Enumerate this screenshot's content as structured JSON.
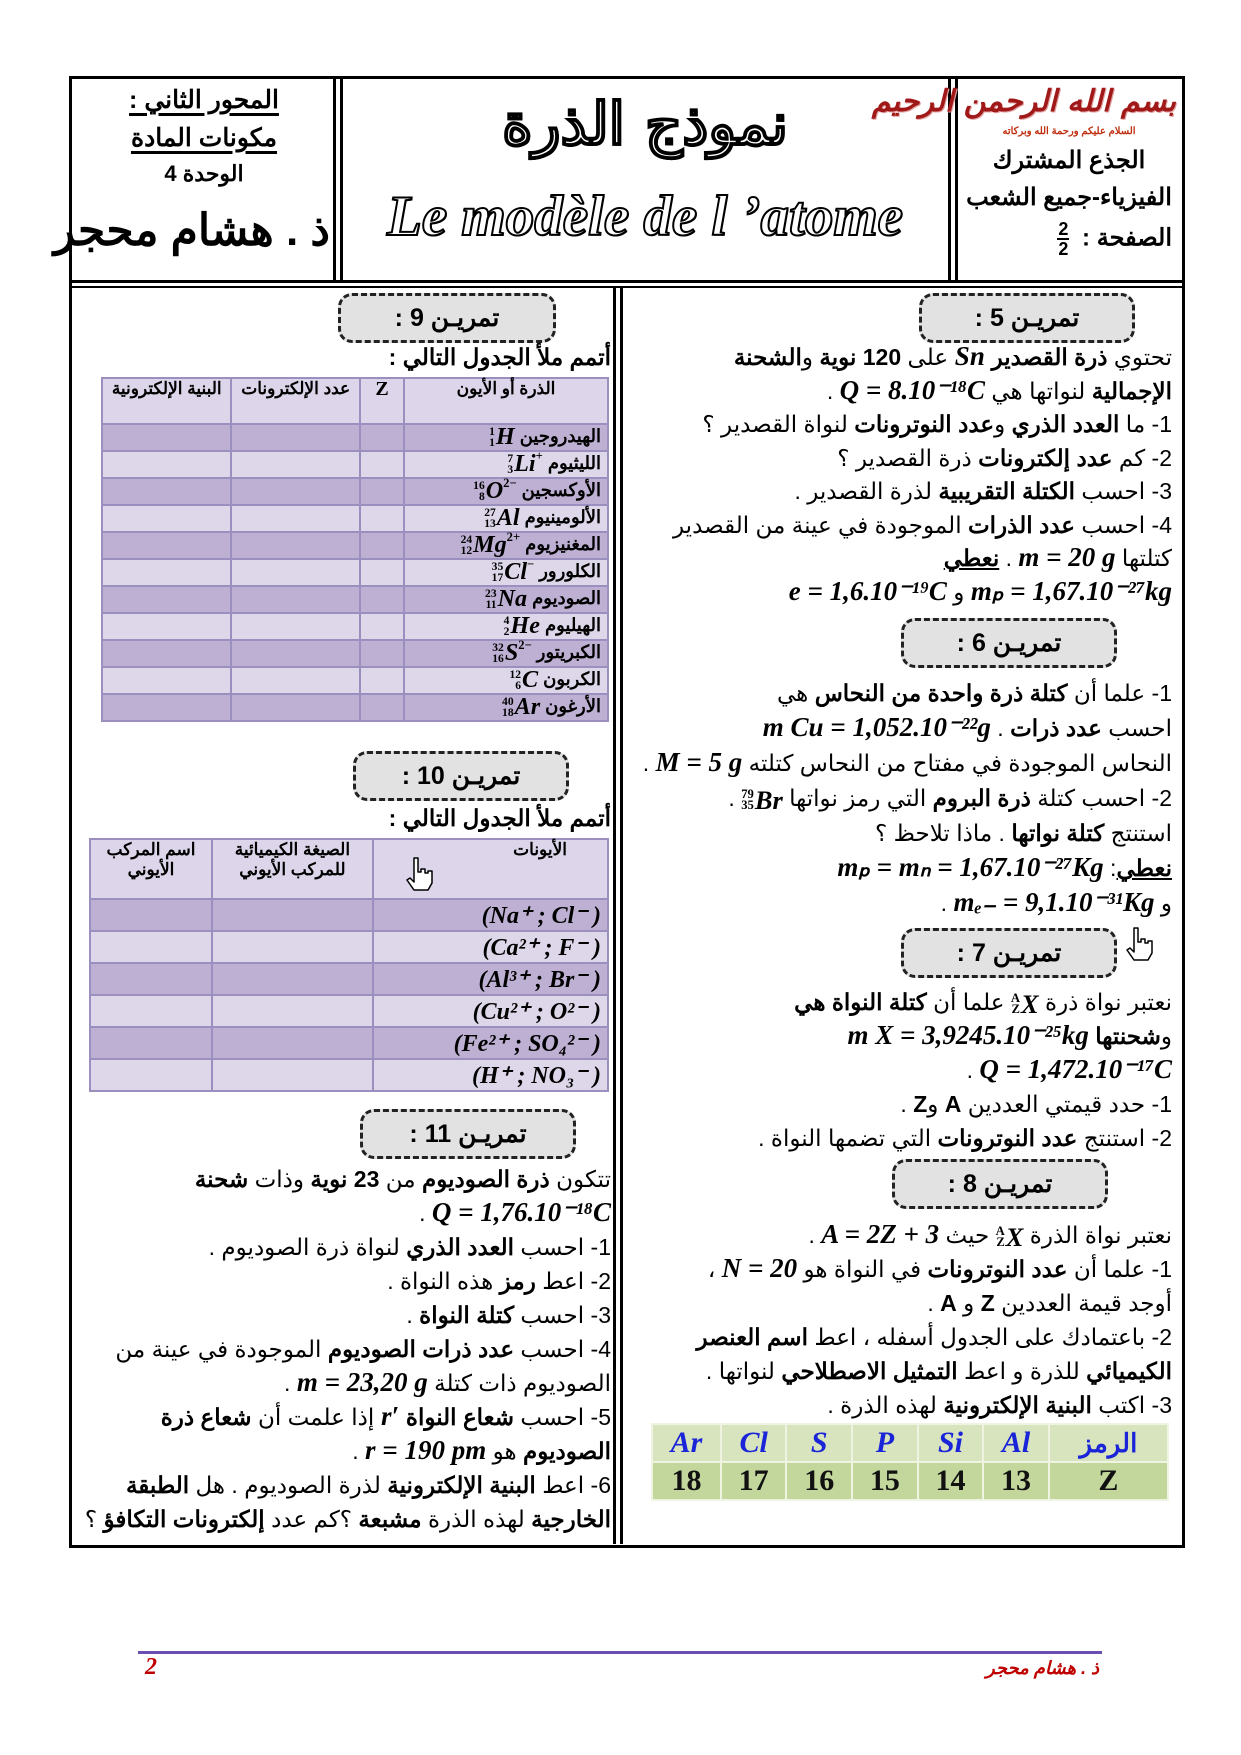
{
  "header": {
    "basmala": "بسم الله الرحمن الرحيم",
    "greeting": "السلام عليكم ورحمة الله وبركاته",
    "level": "الجذع المشترك",
    "branch": "الفيزياء-جميع الشعب",
    "page_label": "الصفحة :",
    "page_current": "2",
    "page_total": "2",
    "title_ar": "نموذج الذرة",
    "title_fr": "Le modèle de l ’atome",
    "axis": "المحور الثاني :",
    "part": "مكونات المادة",
    "unit": "الوحدة 4",
    "teacher": "ذ . هشام محجر"
  },
  "ex5": {
    "title": "تمريـن 5 :",
    "lines": [
      [
        [
          "n",
          "تحتوي "
        ],
        [
          "b",
          "ذرة القصدير"
        ],
        [
          "m",
          " Sn "
        ],
        [
          "n",
          "على "
        ],
        [
          "b",
          "120 نوية"
        ],
        [
          "n",
          " و"
        ],
        [
          "b",
          "الشحنة"
        ]
      ],
      [
        [
          "b",
          "الإجمالية"
        ],
        [
          "n",
          " لنواتها هي "
        ],
        [
          "m",
          "Q = 8.10⁻¹⁸C"
        ],
        [
          "n",
          "  ."
        ]
      ],
      [
        [
          "n",
          "1- ما "
        ],
        [
          "b",
          "العدد الذري"
        ],
        [
          "n",
          " و"
        ],
        [
          "b",
          "عدد النوترونات"
        ],
        [
          "n",
          " لنواة القصدير ؟"
        ]
      ],
      [
        [
          "n",
          "2- كم "
        ],
        [
          "b",
          "عدد إلكترونات"
        ],
        [
          "n",
          " ذرة القصدير ؟"
        ]
      ],
      [
        [
          "n",
          "3- احسب "
        ],
        [
          "b",
          "الكتلة التقريبية"
        ],
        [
          "n",
          " لذرة القصدير ."
        ]
      ],
      [
        [
          "n",
          "4- احسب "
        ],
        [
          "b",
          "عدد الذرات"
        ],
        [
          "n",
          " الموجودة في عينة من القصدير"
        ]
      ],
      [
        [
          "n",
          "كتلتها  "
        ],
        [
          "m",
          "m = 20 g"
        ],
        [
          "n",
          " .    "
        ],
        [
          "u",
          "نعطي"
        ]
      ],
      [
        [
          "m",
          "mₚ = 1,67.10⁻²⁷kg"
        ],
        [
          "n",
          " و "
        ],
        [
          "m",
          "e = 1,6.10⁻¹⁹C"
        ]
      ]
    ]
  },
  "ex6": {
    "title": "تمريـن 6 :",
    "lines": [
      [
        [
          "n",
          "1- علما أن "
        ],
        [
          "b",
          "كتلة ذرة واحدة من النحاس"
        ],
        [
          "n",
          "   هي"
        ]
      ],
      [
        [
          "n",
          "احسب "
        ],
        [
          "b",
          "عدد ذرات"
        ],
        [
          "n",
          " . "
        ],
        [
          "m",
          "m Cu = 1,052.10⁻²²g"
        ]
      ],
      [
        [
          "n",
          "النحاس الموجودة في مفتاح من النحاس كتلته "
        ],
        [
          "m",
          "M = 5 g"
        ],
        [
          "n",
          " ."
        ]
      ],
      [
        [
          "n",
          "2- احسب كتلة "
        ],
        [
          "b",
          "ذرة البروم"
        ],
        [
          "n",
          " التي رمز نواتها "
        ],
        [
          "k",
          "79",
          "35",
          "Br",
          ""
        ],
        [
          "n",
          " ."
        ]
      ],
      [
        [
          "n",
          "استنتج "
        ],
        [
          "b",
          "كتلة نواتها"
        ],
        [
          "n",
          " . ماذا تلاحظ ؟"
        ]
      ],
      [
        [
          "u",
          "نعطي"
        ],
        [
          "n",
          ": "
        ],
        [
          "m",
          "mₚ = mₙ = 1,67.10⁻²⁷Kg"
        ]
      ],
      [
        [
          "n",
          "و    "
        ],
        [
          "m",
          "mₑ₋ = 9,1.10⁻³¹Kg"
        ],
        [
          "n",
          " ."
        ]
      ]
    ]
  },
  "ex7": {
    "title": "تمريـن 7 :",
    "lines": [
      [
        [
          "n",
          "نعتبر نواة ذرة "
        ],
        [
          "k",
          "A",
          "Z",
          "X",
          ""
        ],
        [
          "n",
          "  علما أن "
        ],
        [
          "b",
          "كتلة النواة"
        ],
        [
          "b",
          " هي"
        ]
      ],
      [
        [
          "n",
          "و"
        ],
        [
          "b",
          "شحنتها"
        ],
        [
          "n",
          " "
        ],
        [
          "m",
          "m X = 3,9245.10⁻²⁵kg"
        ]
      ],
      [
        [
          "m",
          "Q = 1,472.10⁻¹⁷C"
        ],
        [
          "n",
          " ."
        ]
      ],
      [
        [
          "n",
          "1- حدد قيمتي العددين "
        ],
        [
          "b",
          "A"
        ],
        [
          "n",
          " و"
        ],
        [
          "b",
          "Z"
        ],
        [
          "n",
          " ."
        ]
      ],
      [
        [
          "n",
          "2- استنتج "
        ],
        [
          "b",
          "عدد النوترونات"
        ],
        [
          "n",
          " التي تضمها النواة ."
        ]
      ]
    ]
  },
  "ex8": {
    "title": "تمريـن 8 :",
    "lines": [
      [
        [
          "n",
          "نعتبر نواة الذرة  "
        ],
        [
          "k",
          "A",
          "Z",
          "X",
          ""
        ],
        [
          "n",
          " حيث "
        ],
        [
          "m",
          "A = 2Z + 3"
        ],
        [
          "n",
          " ."
        ]
      ],
      [
        [
          "n",
          "1- علما أن "
        ],
        [
          "b",
          "عدد النوترونات"
        ],
        [
          "n",
          " في النواة هو "
        ],
        [
          "m",
          "N = 20"
        ],
        [
          "n",
          " ،"
        ]
      ],
      [
        [
          "n",
          "أوجد قيمة العددين "
        ],
        [
          "b",
          "Z"
        ],
        [
          "n",
          " و "
        ],
        [
          "b",
          "A"
        ],
        [
          "n",
          " ."
        ]
      ],
      [
        [
          "n",
          "2- باعتمادك على الجدول أسفله ، اعط "
        ],
        [
          "b",
          "اسم العنصر"
        ]
      ],
      [
        [
          "b",
          "الكيميائي"
        ],
        [
          "n",
          " للذرة و اعط "
        ],
        [
          "b",
          "التمثيل الاصطلاحي"
        ],
        [
          "n",
          " لنواتها ."
        ]
      ],
      [
        [
          "n",
          "3- اكتب "
        ],
        [
          "b",
          "البنية الإلكترونية"
        ],
        [
          "n",
          " لهذه الذرة ."
        ]
      ]
    ],
    "table": {
      "symbol_label": "الرمز",
      "z_label": "Z",
      "symbols": [
        "Al",
        "Si",
        "P",
        "S",
        "Cl",
        "Ar"
      ],
      "z_values": [
        "13",
        "14",
        "15",
        "16",
        "17",
        "18"
      ]
    }
  },
  "ex9": {
    "title": "تمريـن 9 :",
    "instruction": "أتمم ملأ الجدول التالي :",
    "headers": [
      "الذرة أو الأيون",
      "Z",
      "عدد الإلكترونات",
      "البنية الإلكترونية"
    ],
    "rows": [
      [
        "الهيدروجين",
        "1",
        "1",
        "H",
        ""
      ],
      [
        "الليثيوم",
        "7",
        "3",
        "Li",
        "+"
      ],
      [
        "الأوكسجين",
        "16",
        "8",
        "O",
        "2−"
      ],
      [
        "الألومينيوم",
        "27",
        "13",
        "Al",
        ""
      ],
      [
        "المغنيزيوم",
        "24",
        "12",
        "Mg",
        "2+"
      ],
      [
        "الكلورور",
        "35",
        "17",
        "Cl",
        "−"
      ],
      [
        "الصوديوم",
        "23",
        "11",
        "Na",
        ""
      ],
      [
        "الهيليوم",
        "4",
        "2",
        "He",
        ""
      ],
      [
        "الكبريتور",
        "32",
        "16",
        "S",
        "2−"
      ],
      [
        "الكربون",
        "12",
        "6",
        "C",
        ""
      ],
      [
        "الأرغون",
        "40",
        "18",
        "Ar",
        ""
      ]
    ]
  },
  "ex10": {
    "title": "تمريـن 10 :",
    "instruction": "أتمم ملأ الجدول التالي :",
    "headers": [
      "الأيونات",
      "الصيغة الكيميائية للمركب الأيوني",
      "اسم المركب الأيوني"
    ],
    "rows": [
      "(Na⁺ ; Cl⁻ )",
      "(Ca²⁺ ; F⁻ )",
      "(Al³⁺ ; Br⁻ )",
      "(Cu²⁺ ; O²⁻ )",
      "(Fe²⁺ ; SO₄²⁻ )",
      "(H⁺ ; NO₃⁻ )"
    ]
  },
  "ex11": {
    "title": "تمريـن 11 :",
    "lines": [
      [
        [
          "n",
          "تتكون "
        ],
        [
          "b",
          "ذرة الصوديوم"
        ],
        [
          "n",
          " من "
        ],
        [
          "b",
          "23 نوية"
        ],
        [
          "n",
          " وذات "
        ],
        [
          "b",
          "شحنة"
        ]
      ],
      [
        [
          "m",
          "Q = 1,76.10⁻¹⁸C"
        ],
        [
          "n",
          " ."
        ]
      ],
      [
        [
          "n",
          "1- احسب "
        ],
        [
          "b",
          "العدد الذري"
        ],
        [
          "n",
          " لنواة ذرة الصوديوم ."
        ]
      ],
      [
        [
          "n",
          "2- اعط "
        ],
        [
          "b",
          "رمز"
        ],
        [
          "n",
          " هذه النواة ."
        ]
      ],
      [
        [
          "n",
          "3- احسب "
        ],
        [
          "b",
          "كتلة النواة"
        ],
        [
          "n",
          " ."
        ]
      ],
      [
        [
          "n",
          "4- احسب "
        ],
        [
          "b",
          "عدد ذرات الصوديوم"
        ],
        [
          "n",
          " الموجودة في عينة من"
        ]
      ],
      [
        [
          "n",
          "الصوديوم ذات كتلة  "
        ],
        [
          "m",
          "m = 23,20 g"
        ],
        [
          "n",
          " ."
        ]
      ],
      [
        [
          "n",
          "5- احسب "
        ],
        [
          "b",
          "شعاع النواة"
        ],
        [
          "m",
          "  r′  "
        ],
        [
          "n",
          "إذا علمت أن "
        ],
        [
          "b",
          "شعاع ذرة"
        ]
      ],
      [
        [
          "b",
          "الصوديوم"
        ],
        [
          "n",
          " هو  "
        ],
        [
          "m",
          "r = 190 pm"
        ],
        [
          "n",
          " ."
        ]
      ],
      [
        [
          "n",
          "6- اعط "
        ],
        [
          "b",
          "البنية الإلكترونية"
        ],
        [
          "n",
          " لذرة الصوديوم . هل "
        ],
        [
          "b",
          "الطبقة"
        ]
      ],
      [
        [
          "b",
          "الخارجية"
        ],
        [
          "n",
          " لهذه الذرة "
        ],
        [
          "b",
          "مشبعة"
        ],
        [
          "n",
          " ؟كم عدد "
        ],
        [
          "b",
          "إلكترونات التكافؤ"
        ],
        [
          "n",
          " ؟"
        ]
      ]
    ]
  },
  "footer": {
    "author": "ذ . هشام محجر",
    "page_number": "2"
  },
  "colors": {
    "purple_table_dark": "#bdb0d3",
    "purple_table_light": "#ddd7e9",
    "green_table_header": "#d7e4bd",
    "green_table_row": "#c3d69b",
    "symbol_blue": "#1a24d8",
    "footer_red": "#c00000",
    "footer_line": "#6a4fb0"
  },
  "icons": [
    "pointer-hand-icon",
    "pointer-hand-icon"
  ]
}
